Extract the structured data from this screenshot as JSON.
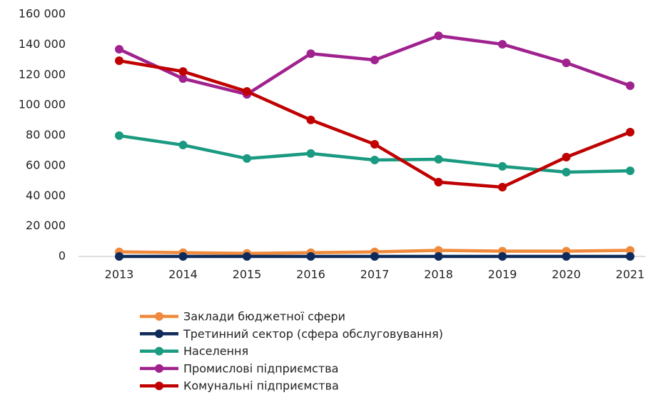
{
  "chart_data": {
    "type": "line",
    "categories": [
      "2013",
      "2014",
      "2015",
      "2016",
      "2017",
      "2018",
      "2019",
      "2020",
      "2021"
    ],
    "series": [
      {
        "name": "Заклади бюджетної сфери",
        "color": "#f08a3c",
        "values": [
          3000,
          2500,
          2000,
          2500,
          3000,
          4000,
          3500,
          3500,
          4000
        ]
      },
      {
        "name": "Третинний сектор (сфера обслуговування)",
        "color": "#0f2b5b",
        "values": [
          0,
          0,
          0,
          0,
          0,
          0,
          0,
          0,
          0
        ]
      },
      {
        "name": "Населення",
        "color": "#1a9a80",
        "values": [
          79800,
          73600,
          64700,
          68000,
          63700,
          64200,
          59500,
          55700,
          56600
        ]
      },
      {
        "name": "Промислові підприємства",
        "color": "#a0228e",
        "values": [
          136900,
          117500,
          107100,
          134000,
          129800,
          145800,
          140200,
          127900,
          112800
        ]
      },
      {
        "name": "Комунальні підприємства",
        "color": "#c00000",
        "values": [
          129300,
          122200,
          109000,
          90200,
          74100,
          49100,
          45800,
          65600,
          82100
        ]
      }
    ],
    "ylim": [
      0,
      160000
    ],
    "yticks": [
      0,
      {
        "value": 20000,
        "label": "20 000"
      },
      {
        "value": 40000,
        "label": "40 000"
      },
      {
        "value": 60000,
        "label": "60 000"
      },
      {
        "value": 80000,
        "label": "80 000"
      },
      {
        "value": 100000,
        "label": "100 000"
      },
      {
        "value": 120000,
        "label": "120 000"
      },
      {
        "value": 140000,
        "label": "140 000"
      },
      {
        "value": 160000,
        "label": "160 000"
      }
    ],
    "grid": false
  }
}
